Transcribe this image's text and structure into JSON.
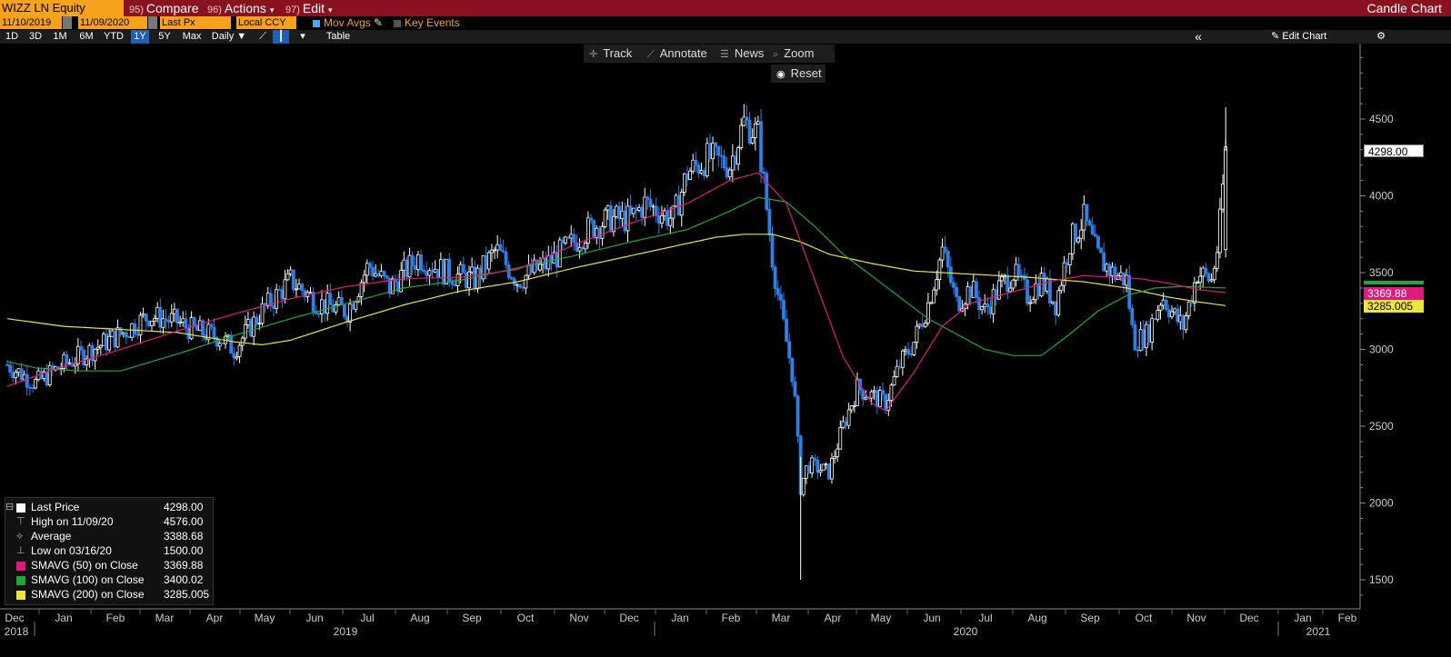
{
  "header": {
    "security": "WIZZ LN Equity",
    "compare_num": "95)",
    "compare_label": "Compare",
    "actions_num": "96)",
    "actions_label": "Actions",
    "edit_num": "97)",
    "edit_label": "Edit",
    "chart_type": "Candle Chart"
  },
  "options": {
    "start_date": "11/10/2019",
    "end_date": "11/09/2020",
    "field": "Last Px",
    "currency": "Local CCY",
    "mov_avgs": "Mov Avgs",
    "key_events": "Key Events"
  },
  "ranges": [
    "1D",
    "3D",
    "1M",
    "6M",
    "YTD",
    "1Y",
    "5Y",
    "Max"
  ],
  "active_range": "1Y",
  "period": "Daily",
  "table_label": "Table",
  "edit_chart_label": "Edit Chart",
  "tools": {
    "track": "Track",
    "annotate": "Annotate",
    "news": "News",
    "zoom": "Zoom",
    "reset": "Reset"
  },
  "legend": [
    {
      "label": "Last Price",
      "value": "4298.00"
    },
    {
      "label": "High on 11/09/20",
      "value": "4576.00"
    },
    {
      "label": "Average",
      "value": "3388.68"
    },
    {
      "label": "Low on 03/16/20",
      "value": "1500.00"
    },
    {
      "label": "SMAVG (50)  on Close",
      "value": "3369.88"
    },
    {
      "label": "SMAVG (100)  on Close",
      "value": "3400.02"
    },
    {
      "label": "SMAVG (200)  on Close",
      "value": "3285.005"
    }
  ],
  "tags": {
    "last": "4298.00",
    "sma50": "3369.88",
    "sma200": "3285.005"
  },
  "colors": {
    "sma50": "#e0197d",
    "sma100": "#1fa83a",
    "sma200": "#ebe639",
    "accent": "#f7a21b",
    "header": "#8a1220",
    "up": "#ffffff",
    "down": "#2f7fe6"
  },
  "chart_data": {
    "type": "candlestick",
    "title": "",
    "xlabel": "",
    "ylabel": "",
    "ylim": [
      1400,
      4950
    ],
    "yticks": [
      1500,
      2000,
      2500,
      3000,
      3500,
      4000,
      4500
    ],
    "month_ticks": [
      "Dec",
      "Jan",
      "Feb",
      "Mar",
      "Apr",
      "May",
      "Jun",
      "Jul",
      "Aug",
      "Sep",
      "Oct",
      "Nov",
      "Dec",
      "Jan",
      "Feb",
      "Mar",
      "Apr",
      "May",
      "Jun",
      "Jul",
      "Aug",
      "Sep",
      "Oct",
      "Nov",
      "Dec",
      "Jan",
      "Feb"
    ],
    "year_labels": [
      "2018",
      "2019",
      "2020",
      "2021"
    ],
    "close_anchors": [
      {
        "t": 0,
        "v": 2900
      },
      {
        "t": 2,
        "v": 2780
      },
      {
        "t": 4,
        "v": 2900
      },
      {
        "t": 6,
        "v": 3000
      },
      {
        "t": 8,
        "v": 3100
      },
      {
        "t": 10,
        "v": 3220
      },
      {
        "t": 12,
        "v": 3180
      },
      {
        "t": 13,
        "v": 3130
      },
      {
        "t": 15,
        "v": 3080
      },
      {
        "t": 16,
        "v": 3000
      },
      {
        "t": 18,
        "v": 3250
      },
      {
        "t": 20,
        "v": 3450
      },
      {
        "t": 22,
        "v": 3300
      },
      {
        "t": 24,
        "v": 3250
      },
      {
        "t": 25.5,
        "v": 3550
      },
      {
        "t": 27,
        "v": 3400
      },
      {
        "t": 29,
        "v": 3600
      },
      {
        "t": 31,
        "v": 3500
      },
      {
        "t": 33,
        "v": 3450
      },
      {
        "t": 34.5,
        "v": 3650
      },
      {
        "t": 36,
        "v": 3450
      },
      {
        "t": 38,
        "v": 3550
      },
      {
        "t": 40,
        "v": 3700
      },
      {
        "t": 41,
        "v": 3780
      },
      {
        "t": 42.5,
        "v": 3850
      },
      {
        "t": 44,
        "v": 3850
      },
      {
        "t": 45,
        "v": 3950
      },
      {
        "t": 47,
        "v": 3850
      },
      {
        "t": 48,
        "v": 4150
      },
      {
        "t": 49.5,
        "v": 4250
      },
      {
        "t": 51,
        "v": 4200
      },
      {
        "t": 52,
        "v": 4480
      },
      {
        "t": 53,
        "v": 4400
      },
      {
        "t": 53.5,
        "v": 4000
      },
      {
        "t": 54,
        "v": 3600
      },
      {
        "t": 54.5,
        "v": 3300
      },
      {
        "t": 55.5,
        "v": 2800
      },
      {
        "t": 56,
        "v": 2100
      },
      {
        "t": 56.5,
        "v": 2250
      },
      {
        "t": 58,
        "v": 2200
      },
      {
        "t": 59,
        "v": 2500
      },
      {
        "t": 60,
        "v": 2750
      },
      {
        "t": 62,
        "v": 2650
      },
      {
        "t": 63,
        "v": 2900
      },
      {
        "t": 64,
        "v": 3050
      },
      {
        "t": 65,
        "v": 3300
      },
      {
        "t": 66,
        "v": 3650
      },
      {
        "t": 67,
        "v": 3300
      },
      {
        "t": 68,
        "v": 3400
      },
      {
        "t": 69,
        "v": 3250
      },
      {
        "t": 70,
        "v": 3400
      },
      {
        "t": 71,
        "v": 3500
      },
      {
        "t": 72,
        "v": 3350
      },
      {
        "t": 73,
        "v": 3450
      },
      {
        "t": 74,
        "v": 3300
      },
      {
        "t": 75,
        "v": 3700
      },
      {
        "t": 76,
        "v": 3850
      },
      {
        "t": 77,
        "v": 3600
      },
      {
        "t": 78,
        "v": 3500
      },
      {
        "t": 79,
        "v": 3450
      },
      {
        "t": 79.5,
        "v": 3050
      },
      {
        "t": 80.5,
        "v": 3100
      },
      {
        "t": 81.5,
        "v": 3350
      },
      {
        "t": 82.5,
        "v": 3200
      },
      {
        "t": 83,
        "v": 3150
      },
      {
        "t": 84,
        "v": 3500
      },
      {
        "t": 85,
        "v": 3450
      },
      {
        "t": 85.5,
        "v": 3700
      },
      {
        "t": 86,
        "v": 4298
      }
    ],
    "sma50": [
      {
        "t": 0,
        "v": 2760
      },
      {
        "t": 3,
        "v": 2860
      },
      {
        "t": 8,
        "v": 3000
      },
      {
        "t": 12,
        "v": 3120
      },
      {
        "t": 16,
        "v": 3230
      },
      {
        "t": 20,
        "v": 3330
      },
      {
        "t": 24,
        "v": 3410
      },
      {
        "t": 28,
        "v": 3460
      },
      {
        "t": 32,
        "v": 3470
      },
      {
        "t": 36,
        "v": 3520
      },
      {
        "t": 40,
        "v": 3680
      },
      {
        "t": 44,
        "v": 3820
      },
      {
        "t": 48,
        "v": 3950
      },
      {
        "t": 51,
        "v": 4100
      },
      {
        "t": 53,
        "v": 4150
      },
      {
        "t": 55,
        "v": 3950
      },
      {
        "t": 57,
        "v": 3450
      },
      {
        "t": 59,
        "v": 2950
      },
      {
        "t": 61,
        "v": 2650
      },
      {
        "t": 62,
        "v": 2600
      },
      {
        "t": 64,
        "v": 2850
      },
      {
        "t": 66,
        "v": 3150
      },
      {
        "t": 68,
        "v": 3300
      },
      {
        "t": 70,
        "v": 3350
      },
      {
        "t": 72,
        "v": 3400
      },
      {
        "t": 74,
        "v": 3450
      },
      {
        "t": 76,
        "v": 3480
      },
      {
        "t": 78,
        "v": 3470
      },
      {
        "t": 80,
        "v": 3460
      },
      {
        "t": 82,
        "v": 3430
      },
      {
        "t": 84,
        "v": 3390
      },
      {
        "t": 86,
        "v": 3370
      }
    ],
    "sma100": [
      {
        "t": 0,
        "v": 2920
      },
      {
        "t": 2,
        "v": 2880
      },
      {
        "t": 5,
        "v": 2860
      },
      {
        "t": 8,
        "v": 2860
      },
      {
        "t": 12,
        "v": 2970
      },
      {
        "t": 16,
        "v": 3090
      },
      {
        "t": 20,
        "v": 3200
      },
      {
        "t": 24,
        "v": 3300
      },
      {
        "t": 28,
        "v": 3400
      },
      {
        "t": 32,
        "v": 3450
      },
      {
        "t": 36,
        "v": 3530
      },
      {
        "t": 40,
        "v": 3610
      },
      {
        "t": 44,
        "v": 3700
      },
      {
        "t": 48,
        "v": 3780
      },
      {
        "t": 51,
        "v": 3900
      },
      {
        "t": 53,
        "v": 3990
      },
      {
        "t": 55,
        "v": 3960
      },
      {
        "t": 57,
        "v": 3800
      },
      {
        "t": 59,
        "v": 3620
      },
      {
        "t": 61,
        "v": 3480
      },
      {
        "t": 63,
        "v": 3340
      },
      {
        "t": 65,
        "v": 3200
      },
      {
        "t": 67,
        "v": 3100
      },
      {
        "t": 69,
        "v": 3000
      },
      {
        "t": 71,
        "v": 2960
      },
      {
        "t": 73,
        "v": 2960
      },
      {
        "t": 75,
        "v": 3100
      },
      {
        "t": 77,
        "v": 3250
      },
      {
        "t": 79,
        "v": 3350
      },
      {
        "t": 81,
        "v": 3400
      },
      {
        "t": 83,
        "v": 3410
      },
      {
        "t": 86,
        "v": 3400
      }
    ],
    "sma200": [
      {
        "t": 0,
        "v": 3200
      },
      {
        "t": 4,
        "v": 3150
      },
      {
        "t": 8,
        "v": 3130
      },
      {
        "t": 12,
        "v": 3110
      },
      {
        "t": 16,
        "v": 3050
      },
      {
        "t": 18,
        "v": 3030
      },
      {
        "t": 20,
        "v": 3060
      },
      {
        "t": 24,
        "v": 3180
      },
      {
        "t": 28,
        "v": 3290
      },
      {
        "t": 32,
        "v": 3380
      },
      {
        "t": 36,
        "v": 3440
      },
      {
        "t": 40,
        "v": 3530
      },
      {
        "t": 44,
        "v": 3610
      },
      {
        "t": 48,
        "v": 3690
      },
      {
        "t": 50,
        "v": 3730
      },
      {
        "t": 52,
        "v": 3750
      },
      {
        "t": 54,
        "v": 3750
      },
      {
        "t": 56,
        "v": 3700
      },
      {
        "t": 58,
        "v": 3620
      },
      {
        "t": 61,
        "v": 3560
      },
      {
        "t": 64,
        "v": 3510
      },
      {
        "t": 68,
        "v": 3490
      },
      {
        "t": 72,
        "v": 3470
      },
      {
        "t": 76,
        "v": 3440
      },
      {
        "t": 79,
        "v": 3400
      },
      {
        "t": 82,
        "v": 3340
      },
      {
        "t": 84,
        "v": 3310
      },
      {
        "t": 86,
        "v": 3285
      }
    ],
    "high": {
      "t": 86,
      "v": 4576
    },
    "low": {
      "t": 56,
      "v": 1500
    },
    "last": 4298
  }
}
